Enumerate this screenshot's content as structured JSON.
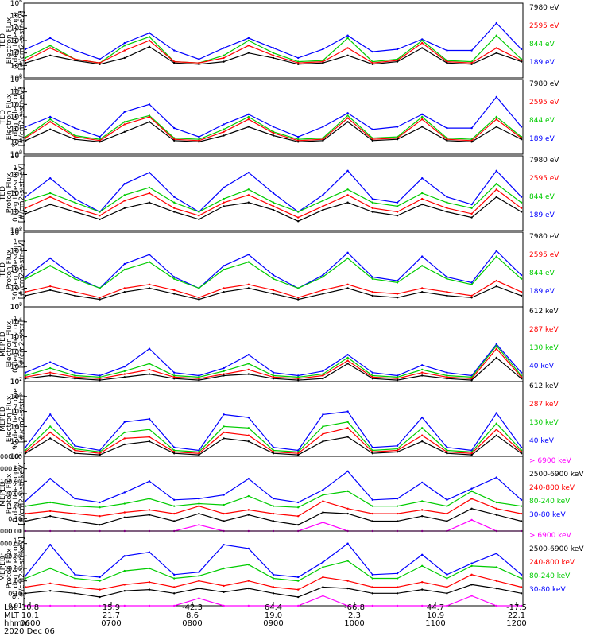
{
  "chart_data": [
    {
      "type": "line",
      "instrument": "TED",
      "ylabel": [
        "TED",
        "Electron Flux",
        "0 deg telescope",
        "[#/cm2-s-str-eV]"
      ],
      "yticks": [
        "10^6",
        "10^5",
        "10^4",
        "10^3",
        "10^2",
        "10^1",
        "10^0"
      ],
      "ylim": [
        0,
        6
      ],
      "series": [
        {
          "name": "7980 eV",
          "color": "#000000",
          "values": [
            1.2,
            1.8,
            1.4,
            1.1,
            1.6,
            2.5,
            1.2,
            1.1,
            1.3,
            2.0,
            1.6,
            1.1,
            1.2,
            1.8,
            1.1,
            1.3,
            2.4,
            1.2,
            1.1,
            2.0,
            1.3
          ]
        },
        {
          "name": "2595 eV",
          "color": "#ff0000",
          "values": [
            1.4,
            2.4,
            1.5,
            1.2,
            2.2,
            3.0,
            1.3,
            1.2,
            1.6,
            2.6,
            1.8,
            1.2,
            1.3,
            2.4,
            1.2,
            1.4,
            2.8,
            1.3,
            1.2,
            2.4,
            1.4
          ]
        },
        {
          "name": "844 eV",
          "color": "#00cc00",
          "values": [
            1.6,
            2.6,
            1.5,
            1.2,
            2.6,
            3.3,
            1.3,
            1.2,
            1.8,
            3.0,
            2.0,
            1.3,
            1.4,
            3.2,
            1.3,
            1.5,
            3.0,
            1.4,
            1.3,
            3.4,
            1.5
          ]
        },
        {
          "name": "189 eV",
          "color": "#0000ff",
          "values": [
            2.3,
            3.2,
            2.2,
            1.5,
            2.8,
            3.6,
            2.2,
            1.5,
            2.4,
            3.2,
            2.4,
            1.6,
            2.3,
            3.4,
            2.1,
            2.3,
            3.1,
            2.2,
            2.2,
            4.4,
            2.3
          ]
        }
      ]
    },
    {
      "type": "line",
      "instrument": "TED",
      "ylabel": [
        "TED",
        "Electron Flux",
        "30 deg telescope",
        "[#/cm2-s-str-eV]"
      ],
      "yticks": [
        "10^6",
        "10^5",
        "10^4",
        "10^3",
        "10^2",
        "10^1",
        "10^0"
      ],
      "ylim": [
        0,
        6
      ],
      "series": [
        {
          "name": "7980 eV",
          "color": "#000000",
          "values": [
            1.1,
            2.0,
            1.2,
            1.0,
            1.8,
            2.6,
            1.1,
            1.0,
            1.5,
            2.2,
            1.5,
            1.0,
            1.1,
            2.6,
            1.1,
            1.2,
            2.2,
            1.1,
            1.0,
            2.2,
            1.2
          ]
        },
        {
          "name": "2595 eV",
          "color": "#ff0000",
          "values": [
            1.3,
            2.6,
            1.4,
            1.1,
            2.4,
            3.0,
            1.2,
            1.1,
            1.8,
            2.8,
            1.7,
            1.1,
            1.2,
            2.9,
            1.2,
            1.3,
            2.8,
            1.2,
            1.1,
            2.8,
            1.3
          ]
        },
        {
          "name": "844 eV",
          "color": "#00cc00",
          "values": [
            1.4,
            2.8,
            1.5,
            1.2,
            2.6,
            3.1,
            1.3,
            1.2,
            2.0,
            3.0,
            1.8,
            1.2,
            1.3,
            3.1,
            1.3,
            1.4,
            3.0,
            1.3,
            1.2,
            3.0,
            1.4
          ]
        },
        {
          "name": "189 eV",
          "color": "#0000ff",
          "values": [
            2.2,
            3.0,
            2.1,
            1.4,
            3.4,
            4.0,
            2.1,
            1.4,
            2.4,
            3.2,
            2.2,
            1.4,
            2.2,
            3.3,
            2.0,
            2.2,
            3.2,
            2.1,
            2.1,
            4.6,
            2.2
          ]
        }
      ]
    },
    {
      "type": "line",
      "instrument": "TED",
      "ylabel": [
        "TED",
        "Proton Flux",
        "0 deg telescope",
        "[#/cm2-s-str-eV]"
      ],
      "yticks": [
        "10^4",
        "10^3",
        "10^2",
        "10^1",
        "10^0"
      ],
      "ylim": [
        0,
        4
      ],
      "series": [
        {
          "name": "7980 eV",
          "color": "#000000",
          "values": [
            0.9,
            1.4,
            1.0,
            0.6,
            1.2,
            1.5,
            1.0,
            0.6,
            1.3,
            1.5,
            1.1,
            0.5,
            1.1,
            1.5,
            1.0,
            0.8,
            1.4,
            1.0,
            0.7,
            1.8,
            1.0
          ]
        },
        {
          "name": "2595 eV",
          "color": "#ff0000",
          "values": [
            1.2,
            1.8,
            1.2,
            0.8,
            1.6,
            2.0,
            1.2,
            0.8,
            1.5,
            1.9,
            1.3,
            0.7,
            1.3,
            1.9,
            1.2,
            1.0,
            1.7,
            1.2,
            0.9,
            2.2,
            1.2
          ]
        },
        {
          "name": "844 eV",
          "color": "#00cc00",
          "values": [
            1.6,
            2.0,
            1.5,
            1.0,
            1.9,
            2.3,
            1.5,
            1.0,
            1.7,
            2.2,
            1.5,
            1.0,
            1.6,
            2.2,
            1.5,
            1.3,
            2.0,
            1.5,
            1.2,
            2.5,
            1.5
          ]
        },
        {
          "name": "189 eV",
          "color": "#0000ff",
          "values": [
            1.8,
            2.8,
            1.7,
            1.0,
            2.5,
            3.1,
            1.8,
            1.0,
            2.3,
            3.1,
            2.0,
            1.0,
            1.9,
            3.2,
            1.7,
            1.5,
            2.8,
            1.8,
            1.4,
            3.2,
            1.8
          ]
        }
      ]
    },
    {
      "type": "line",
      "instrument": "TED",
      "ylabel": [
        "TED",
        "Proton Flux",
        "30 deg telescope",
        "[#/cm2-s-str-eV]"
      ],
      "yticks": [
        "10^4",
        "10^3",
        "10^2",
        "10^1",
        "10^0"
      ],
      "ylim": [
        0,
        4
      ],
      "series": [
        {
          "name": "7980 eV",
          "color": "#000000",
          "values": [
            0.6,
            0.9,
            0.6,
            0.4,
            0.8,
            1.0,
            0.7,
            0.4,
            0.8,
            1.0,
            0.7,
            0.4,
            0.7,
            1.0,
            0.6,
            0.5,
            0.8,
            0.6,
            0.5,
            1.1,
            0.6
          ]
        },
        {
          "name": "2595 eV",
          "color": "#ff0000",
          "values": [
            0.8,
            1.1,
            0.8,
            0.5,
            1.0,
            1.2,
            0.9,
            0.5,
            1.0,
            1.2,
            0.9,
            0.5,
            0.9,
            1.2,
            0.8,
            0.7,
            1.0,
            0.8,
            0.6,
            1.4,
            0.8
          ]
        },
        {
          "name": "844 eV",
          "color": "#00cc00",
          "values": [
            1.5,
            2.2,
            1.5,
            1.0,
            2.0,
            2.4,
            1.5,
            1.0,
            2.0,
            2.4,
            1.5,
            1.0,
            1.6,
            2.6,
            1.5,
            1.3,
            2.2,
            1.5,
            1.2,
            2.7,
            1.5
          ]
        },
        {
          "name": "189 eV",
          "color": "#0000ff",
          "values": [
            1.6,
            2.6,
            1.6,
            1.0,
            2.3,
            2.8,
            1.6,
            1.0,
            2.2,
            2.8,
            1.7,
            1.0,
            1.7,
            2.9,
            1.6,
            1.4,
            2.7,
            1.6,
            1.3,
            3.0,
            1.7
          ]
        }
      ]
    },
    {
      "type": "line",
      "instrument": "MEPED",
      "ylabel": [
        "MEPED",
        "Electron Flux",
        "0 deg telescope",
        "[#/cm2-s-str]"
      ],
      "yticks": [
        "10^7",
        "10^6",
        "10^5",
        "10^4",
        "10^3",
        "10^2"
      ],
      "ylim": [
        2,
        7
      ],
      "series": [
        {
          "name": "612 keV",
          "color": "#000000",
          "values": [
            2.2,
            2.4,
            2.2,
            2.1,
            2.3,
            2.5,
            2.2,
            2.1,
            2.4,
            2.5,
            2.2,
            2.1,
            2.2,
            3.2,
            2.2,
            2.1,
            2.4,
            2.2,
            2.1,
            3.6,
            2.2
          ]
        },
        {
          "name": "287 keV",
          "color": "#ff0000",
          "values": [
            2.3,
            2.6,
            2.3,
            2.2,
            2.5,
            2.8,
            2.3,
            2.2,
            2.5,
            2.8,
            2.3,
            2.2,
            2.4,
            3.4,
            2.3,
            2.2,
            2.6,
            2.3,
            2.2,
            4.2,
            2.3
          ]
        },
        {
          "name": "130 keV",
          "color": "#00cc00",
          "values": [
            2.4,
            2.9,
            2.4,
            2.3,
            2.7,
            3.2,
            2.4,
            2.3,
            2.7,
            3.2,
            2.4,
            2.3,
            2.5,
            3.6,
            2.4,
            2.3,
            2.8,
            2.4,
            2.3,
            4.4,
            2.4
          ]
        },
        {
          "name": "40 keV",
          "color": "#0000ff",
          "values": [
            2.6,
            3.3,
            2.6,
            2.4,
            3.0,
            4.2,
            2.6,
            2.4,
            2.9,
            3.8,
            2.6,
            2.4,
            2.7,
            3.8,
            2.6,
            2.4,
            3.1,
            2.6,
            2.4,
            4.5,
            2.6
          ]
        }
      ]
    },
    {
      "type": "line",
      "instrument": "MEPED",
      "ylabel": [
        "MEPED",
        "Electron Flux",
        "90 deg telescope",
        "[#/cm2-s-str]"
      ],
      "yticks": [
        "10^7",
        "10^6",
        "10^5",
        "10^4",
        "10^3",
        "10^2"
      ],
      "ylim": [
        2,
        7
      ],
      "series": [
        {
          "name": "612 keV",
          "color": "#000000",
          "values": [
            2.2,
            3.2,
            2.2,
            2.1,
            2.8,
            3.0,
            2.2,
            2.1,
            3.2,
            3.0,
            2.2,
            2.1,
            3.0,
            3.3,
            2.2,
            2.3,
            3.0,
            2.2,
            2.1,
            3.4,
            2.2
          ]
        },
        {
          "name": "287 keV",
          "color": "#ff0000",
          "values": [
            2.3,
            3.6,
            2.4,
            2.2,
            3.2,
            3.3,
            2.3,
            2.2,
            3.6,
            3.4,
            2.3,
            2.2,
            3.5,
            3.9,
            2.3,
            2.4,
            3.4,
            2.3,
            2.2,
            3.8,
            2.3
          ]
        },
        {
          "name": "130 keV",
          "color": "#00cc00",
          "values": [
            2.4,
            4.0,
            2.5,
            2.3,
            3.6,
            3.8,
            2.4,
            2.3,
            4.0,
            3.9,
            2.4,
            2.3,
            4.0,
            4.3,
            2.4,
            2.5,
            3.9,
            2.4,
            2.3,
            4.2,
            2.4
          ]
        },
        {
          "name": "40 keV",
          "color": "#0000ff",
          "values": [
            2.6,
            4.8,
            2.7,
            2.4,
            4.3,
            4.5,
            2.6,
            2.4,
            4.8,
            4.6,
            2.6,
            2.4,
            4.8,
            5.0,
            2.6,
            2.7,
            4.6,
            2.6,
            2.4,
            4.9,
            2.6
          ]
        }
      ]
    },
    {
      "type": "line",
      "instrument": "MEPED",
      "ylabel": [
        "MEPED",
        "Proton Flux",
        "0 deg telescope",
        "[#/cm2-s-str-keV]"
      ],
      "yticks": [
        "10000.00",
        "1000.00",
        "100.00",
        "10.00",
        "1.00",
        "0.10",
        "0.01"
      ],
      "ylim": [
        -2,
        4
      ],
      "series": [
        {
          "name": "> 6900 keV",
          "color": "#ff00ff",
          "values": [
            -2,
            -2,
            -2,
            -2,
            -2,
            -2,
            -2,
            -1.5,
            -2,
            -2,
            -2,
            -2,
            -1.3,
            -2,
            -2,
            -2,
            -2,
            -2,
            -1.1,
            -2,
            -2
          ]
        },
        {
          "name": "2500-6900 keV",
          "color": "#000000",
          "values": [
            -1.2,
            -0.8,
            -1.2,
            -1.5,
            -0.9,
            -0.7,
            -1.2,
            -0.6,
            -1.2,
            -0.7,
            -1.2,
            -1.5,
            -0.5,
            -0.6,
            -1.2,
            -1.2,
            -0.8,
            -1.2,
            -0.2,
            -0.7,
            -1.2
          ]
        },
        {
          "name": "240-800 keV",
          "color": "#ff0000",
          "values": [
            -0.6,
            -0.4,
            -0.6,
            -0.8,
            -0.5,
            -0.3,
            -0.6,
            0.0,
            -0.6,
            -0.3,
            -0.6,
            -0.8,
            0.4,
            -0.2,
            -0.6,
            -0.6,
            -0.3,
            -0.6,
            0.6,
            -0.2,
            -0.6
          ]
        },
        {
          "name": "80-240 keV",
          "color": "#00cc00",
          "values": [
            0.0,
            0.3,
            0.0,
            -0.1,
            0.2,
            0.6,
            0.0,
            0.2,
            0.1,
            0.8,
            0.0,
            -0.1,
            0.9,
            1.2,
            0.0,
            0.0,
            0.4,
            0.0,
            1.2,
            0.3,
            0.0
          ]
        },
        {
          "name": "30-80 keV",
          "color": "#0000ff",
          "values": [
            0.4,
            2.2,
            0.6,
            0.3,
            1.1,
            2.0,
            0.5,
            0.6,
            0.9,
            2.2,
            0.6,
            0.3,
            1.3,
            2.8,
            0.5,
            0.6,
            1.9,
            0.5,
            1.4,
            2.3,
            0.5
          ]
        }
      ]
    },
    {
      "type": "line",
      "instrument": "MEPED",
      "ylabel": [
        "MEPED",
        "Proton Flux",
        "90 deg telescope",
        "[#/cm2-s-str-keV]"
      ],
      "yticks": [
        "10000.00",
        "1000.00",
        "100.00",
        "10.00",
        "1.00",
        "0.10",
        "0.01"
      ],
      "ylim": [
        -2,
        4
      ],
      "series": [
        {
          "name": "> 6900 keV",
          "color": "#ff00ff",
          "values": [
            -2,
            -2,
            -2,
            -2,
            -2,
            -2,
            -2,
            -1.4,
            -2,
            -2,
            -2,
            -2,
            -1.2,
            -2,
            -2,
            -2,
            -2,
            -2,
            -1.2,
            -2,
            -2
          ]
        },
        {
          "name": "2500-6900 keV",
          "color": "#000000",
          "values": [
            -1.0,
            -0.8,
            -1.0,
            -1.3,
            -0.8,
            -0.7,
            -1.0,
            -0.6,
            -0.9,
            -0.6,
            -1.0,
            -1.3,
            -0.5,
            -0.6,
            -1.0,
            -1.0,
            -0.7,
            -1.0,
            -0.3,
            -0.6,
            -1.0
          ]
        },
        {
          "name": "240-800 keV",
          "color": "#ff0000",
          "values": [
            -0.5,
            -0.2,
            -0.5,
            -0.7,
            -0.3,
            -0.1,
            -0.5,
            0.0,
            -0.4,
            0.0,
            -0.5,
            -0.7,
            0.3,
            0.0,
            -0.5,
            -0.5,
            -0.1,
            -0.5,
            0.5,
            0.0,
            -0.5
          ]
        },
        {
          "name": "80-240 keV",
          "color": "#00cc00",
          "values": [
            0.2,
            1.0,
            0.2,
            0.0,
            0.8,
            1.0,
            0.2,
            0.4,
            1.0,
            1.3,
            0.2,
            0.0,
            1.1,
            1.6,
            0.2,
            0.2,
            1.2,
            0.2,
            1.2,
            1.1,
            0.2
          ]
        },
        {
          "name": "30-80 keV",
          "color": "#0000ff",
          "values": [
            0.4,
            2.9,
            0.5,
            0.3,
            2.0,
            2.3,
            0.5,
            0.7,
            2.9,
            2.6,
            0.5,
            0.3,
            1.5,
            3.0,
            0.5,
            0.6,
            2.1,
            0.5,
            1.4,
            2.2,
            0.5
          ]
        }
      ]
    }
  ],
  "x_axis": {
    "row_labels": [
      "Lat",
      "MLT",
      "hhmm",
      "2020 Dec 06"
    ],
    "ticks": [
      {
        "lat": "10.8",
        "mlt": "10.1",
        "hhmm": "0600"
      },
      {
        "lat": "15.9",
        "mlt": "21.7",
        "hhmm": "0700"
      },
      {
        "lat": "-42.3",
        "mlt": "8.6",
        "hhmm": "0800"
      },
      {
        "lat": "64.4",
        "mlt": "19.0",
        "hhmm": "0900"
      },
      {
        "lat": "-66.8",
        "mlt": "2.3",
        "hhmm": "1000"
      },
      {
        "lat": "44.7",
        "mlt": "10.9",
        "hhmm": "1100"
      },
      {
        "lat": "-17.5",
        "mlt": "22.1",
        "hhmm": "1200"
      }
    ]
  }
}
